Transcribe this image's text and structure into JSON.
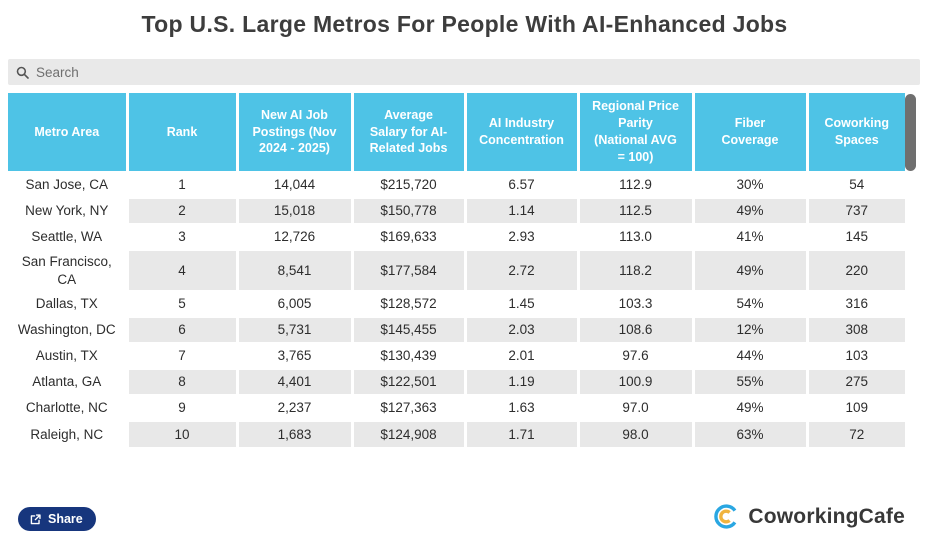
{
  "title": "Top U.S. Large Metros For People With AI-Enhanced Jobs",
  "search": {
    "placeholder": "Search",
    "icon": "magnifier-icon"
  },
  "table": {
    "columns": [
      "Metro Area",
      "Rank",
      "New AI Job Postings (Nov 2024 - 2025)",
      "Average Salary for AI-Related Jobs",
      "AI Industry Concentration",
      "Regional Price Parity (National AVG = 100)",
      "Fiber Coverage",
      "Coworking Spaces"
    ],
    "rows": [
      [
        "San Jose, CA",
        "1",
        "14,044",
        "$215,720",
        "6.57",
        "112.9",
        "30%",
        "54"
      ],
      [
        "New York, NY",
        "2",
        "15,018",
        "$150,778",
        "1.14",
        "112.5",
        "49%",
        "737"
      ],
      [
        "Seattle, WA",
        "3",
        "12,726",
        "$169,633",
        "2.93",
        "113.0",
        "41%",
        "145"
      ],
      [
        "San Francisco, CA",
        "4",
        "8,541",
        "$177,584",
        "2.72",
        "118.2",
        "49%",
        "220"
      ],
      [
        "Dallas, TX",
        "5",
        "6,005",
        "$128,572",
        "1.45",
        "103.3",
        "54%",
        "316"
      ],
      [
        "Washington, DC",
        "6",
        "5,731",
        "$145,455",
        "2.03",
        "108.6",
        "12%",
        "308"
      ],
      [
        "Austin, TX",
        "7",
        "3,765",
        "$130,439",
        "2.01",
        "97.6",
        "44%",
        "103"
      ],
      [
        "Atlanta, GA",
        "8",
        "4,401",
        "$122,501",
        "1.19",
        "100.9",
        "55%",
        "275"
      ],
      [
        "Charlotte, NC",
        "9",
        "2,237",
        "$127,363",
        "1.63",
        "97.0",
        "49%",
        "109"
      ],
      [
        "Raleigh, NC",
        "10",
        "1,683",
        "$124,908",
        "1.71",
        "98.0",
        "63%",
        "72"
      ]
    ]
  },
  "footer": {
    "share_label": "Share",
    "share_icon": "export-share-icon",
    "brand": "CoworkingCafe",
    "brand_icon": "double-c-logo-icon"
  },
  "colors": {
    "header_bg": "#4ec3e6",
    "row_stripe": "#e8e8e8",
    "title_text": "#3d3d3d",
    "share_button_bg": "#17367d",
    "logo_blue": "#2aa7e2",
    "logo_yellow": "#f0b43f",
    "scroll_thumb": "#6f6f6f"
  }
}
